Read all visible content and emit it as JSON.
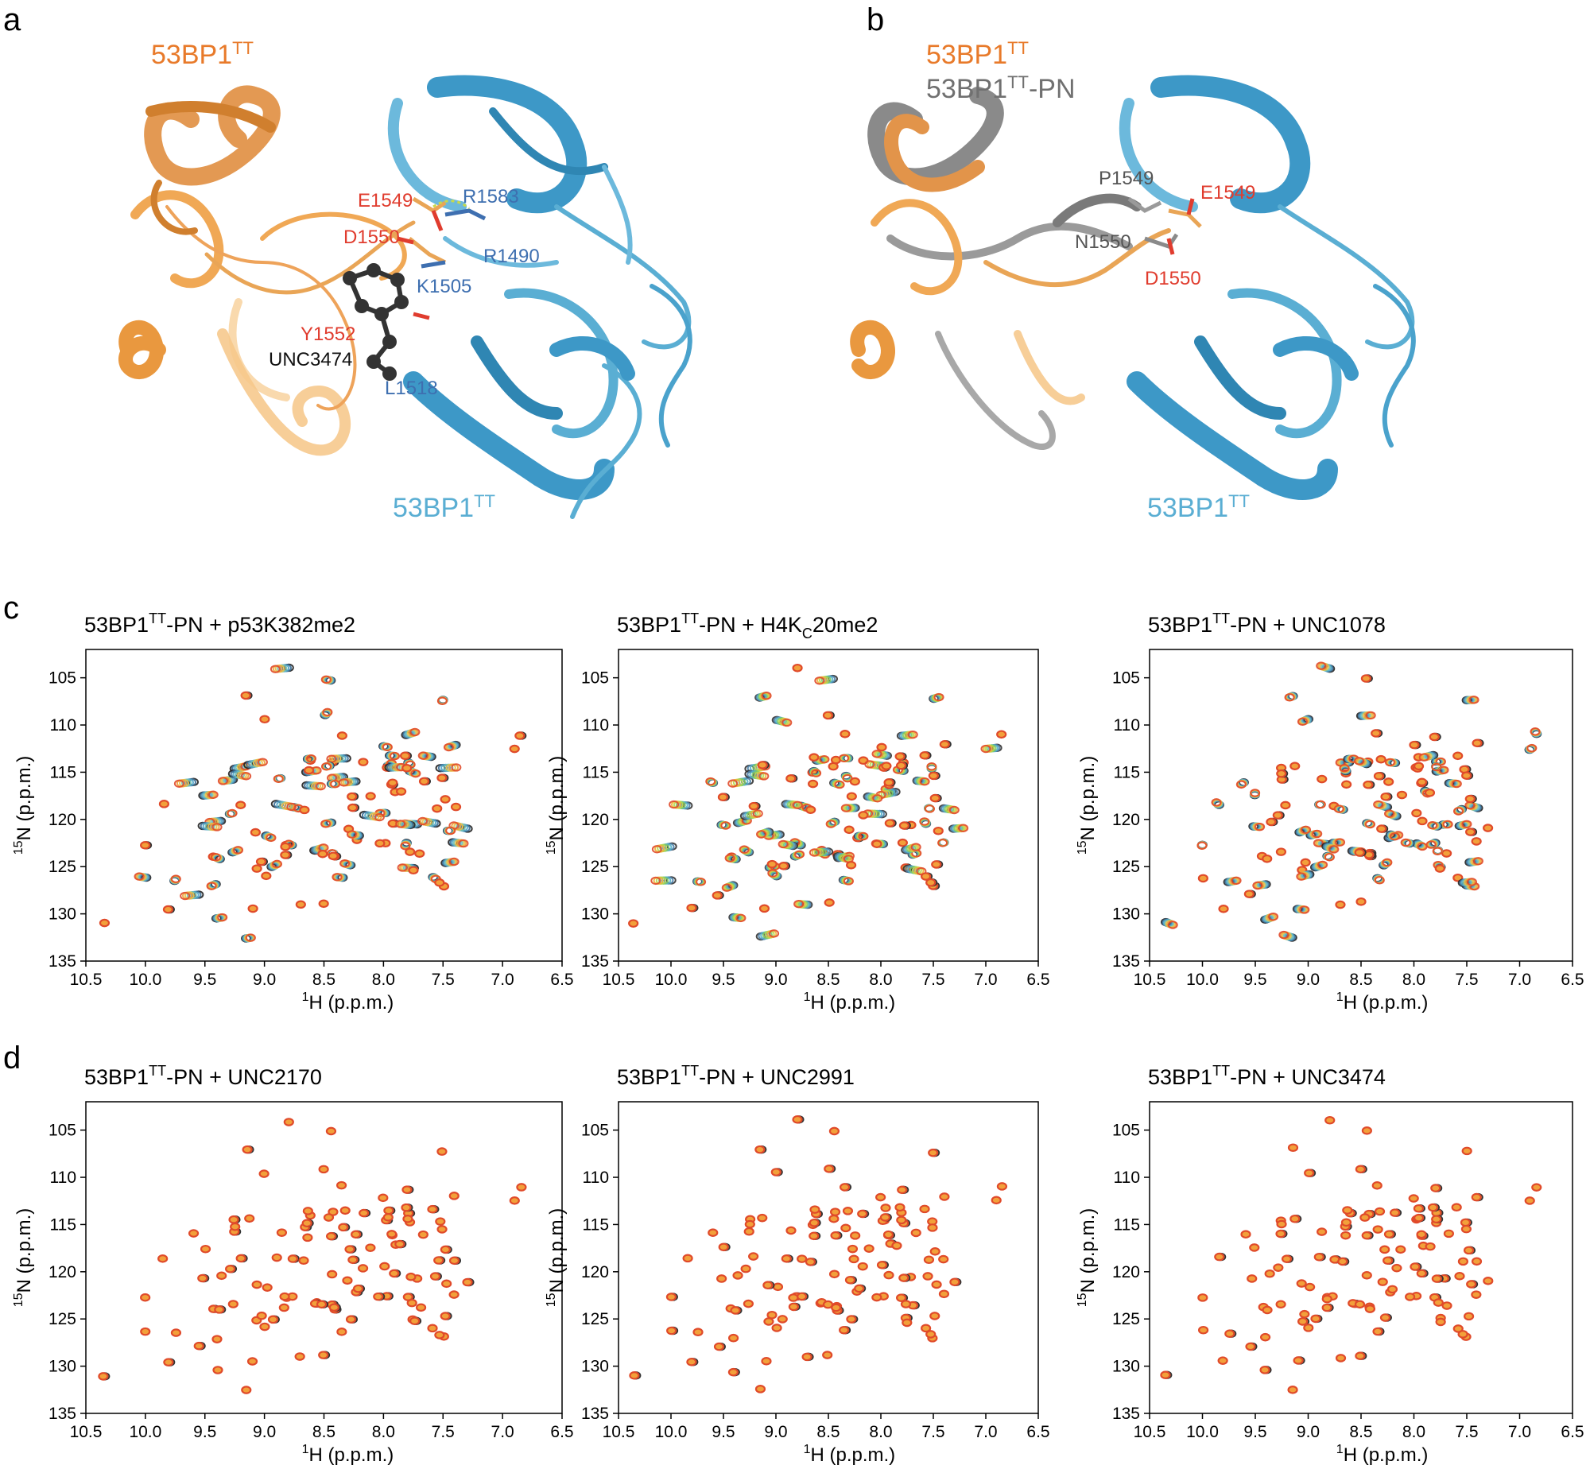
{
  "panels": {
    "a": {
      "letter": "a",
      "label_orange": "53BP1",
      "label_orange_sup": "TT",
      "label_blue": "53BP1",
      "label_blue_sup": "TT",
      "residues": [
        {
          "text": "E1549",
          "color": "#e03c2e"
        },
        {
          "text": "R1583",
          "color": "#3e6fb0"
        },
        {
          "text": "D1550",
          "color": "#e03c2e"
        },
        {
          "text": "R1490",
          "color": "#3e6fb0"
        },
        {
          "text": "K1505",
          "color": "#3e6fb0"
        },
        {
          "text": "Y1552",
          "color": "#e03c2e"
        },
        {
          "text": "UNC3474",
          "color": "#111111"
        },
        {
          "text": "L1518",
          "color": "#3e6fb0"
        }
      ]
    },
    "b": {
      "letter": "b",
      "label_orange": "53BP1",
      "label_orange_sup": "TT",
      "label_gray": "53BP1",
      "label_gray_sup": "TT",
      "label_gray_suffix": "-PN",
      "label_blue": "53BP1",
      "label_blue_sup": "TT",
      "residues": [
        {
          "text": "P1549",
          "color": "#555555"
        },
        {
          "text": "E1549",
          "color": "#e03c2e"
        },
        {
          "text": "N1550",
          "color": "#555555"
        },
        {
          "text": "D1550",
          "color": "#e03c2e"
        }
      ]
    },
    "c": {
      "letter": "c"
    },
    "d": {
      "letter": "d"
    }
  },
  "colors": {
    "orange": "#f0a14c",
    "orange_dark": "#d9822b",
    "blue": "#5aaed3",
    "blue_dark": "#2f86b3",
    "gray": "#8a8a8a",
    "peak_red": "#e04a2a",
    "peak_orange": "#f2a03a"
  },
  "axes_common": {
    "x_tick_labels": [
      "10.5",
      "10.0",
      "9.5",
      "9.0",
      "8.5",
      "8.0",
      "7.5",
      "7.0",
      "6.5"
    ],
    "y_tick_labels": [
      "105",
      "110",
      "115",
      "120",
      "125",
      "130",
      "135"
    ],
    "xlabel_sup": "1",
    "xlabel_main": "H (p.p.m.)",
    "ylabel_sup": "15",
    "ylabel_main": "N (p.p.m.)"
  },
  "chart_data": [
    {
      "type": "scatter",
      "title_a": "53BP1",
      "title_sup": "TT",
      "title_b": "-PN + p53K382me2",
      "title_sub": "",
      "title_c": "",
      "xlim": [
        10.5,
        6.5
      ],
      "ylim": [
        135,
        102
      ],
      "xlabel": "1H (p.p.m.)",
      "ylabel": "15N (p.p.m.)",
      "style": "titration-strong",
      "seed": 11
    },
    {
      "type": "scatter",
      "title_a": "53BP1",
      "title_sup": "TT",
      "title_b": "-PN + H4K",
      "title_sub": "C",
      "title_c": "20me2",
      "xlim": [
        10.5,
        6.5
      ],
      "ylim": [
        135,
        102
      ],
      "xlabel": "1H (p.p.m.)",
      "ylabel": "15N (p.p.m.)",
      "style": "titration-green",
      "seed": 23
    },
    {
      "type": "scatter",
      "title_a": "53BP1",
      "title_sup": "TT",
      "title_b": "-PN + UNC1078",
      "title_sub": "",
      "title_c": "",
      "xlim": [
        10.5,
        6.5
      ],
      "ylim": [
        135,
        102
      ],
      "xlabel": "1H (p.p.m.)",
      "ylabel": "15N (p.p.m.)",
      "style": "titration-medium",
      "seed": 37
    },
    {
      "type": "scatter",
      "title_a": "53BP1",
      "title_sup": "TT",
      "title_b": "-PN + UNC2170",
      "title_sub": "",
      "title_c": "",
      "xlim": [
        10.5,
        6.5
      ],
      "ylim": [
        135,
        102
      ],
      "xlabel": "1H (p.p.m.)",
      "ylabel": "15N (p.p.m.)",
      "style": "overlay",
      "seed": 41
    },
    {
      "type": "scatter",
      "title_a": "53BP1",
      "title_sup": "TT",
      "title_b": "-PN + UNC2991",
      "title_sub": "",
      "title_c": "",
      "xlim": [
        10.5,
        6.5
      ],
      "ylim": [
        135,
        102
      ],
      "xlabel": "1H (p.p.m.)",
      "ylabel": "15N (p.p.m.)",
      "style": "overlay",
      "seed": 53
    },
    {
      "type": "scatter",
      "title_a": "53BP1",
      "title_sup": "TT",
      "title_b": "-PN + UNC3474",
      "title_sub": "",
      "title_c": "",
      "xlim": [
        10.5,
        6.5
      ],
      "ylim": [
        135,
        102
      ],
      "xlabel": "1H (p.p.m.)",
      "ylabel": "15N (p.p.m.)",
      "style": "overlay",
      "seed": 67
    }
  ]
}
